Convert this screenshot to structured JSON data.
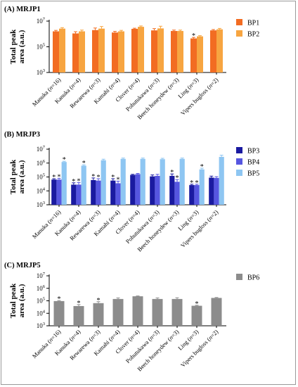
{
  "chart_data": [
    {
      "type": "bar",
      "title": "(A) MRJP1",
      "ylabel_lines": [
        "Total peak",
        "area (a.u.)"
      ],
      "yscale": "log",
      "ylim": [
        1000,
        10000000
      ],
      "yticks": [
        1000,
        100000,
        10000000
      ],
      "ytick_labels": [
        {
          "base": "10",
          "exp": "3"
        },
        {
          "base": "10",
          "exp": "5"
        },
        {
          "base": "10",
          "exp": "7"
        }
      ],
      "categories": [
        "Manuka (n=16)",
        "Kanuka (n=4)",
        "Rewarewa (n=3)",
        "Kamahi (n=4)",
        "Clover (n=4)",
        "Pohutukawa (n=3)",
        "Beech honeydew (n=3)",
        "Ling (n=3)",
        "Vipers bugloss (n=2)"
      ],
      "category_labels": [
        {
          "name": "Manuka",
          "n": "16"
        },
        {
          "name": "Kanuka",
          "n": "4"
        },
        {
          "name": "Rewarewa",
          "n": "3"
        },
        {
          "name": "Kamahi",
          "n": "4"
        },
        {
          "name": "Clover",
          "n": "4"
        },
        {
          "name": "Pohutukawa",
          "n": "3"
        },
        {
          "name": "Beech honeydew",
          "n": "3"
        },
        {
          "name": "Ling",
          "n": "3"
        },
        {
          "name": "Vipers bugloss",
          "n": "2"
        }
      ],
      "series": [
        {
          "name": "BP1",
          "color": "#f26c22",
          "values": [
            1600000,
            1100000,
            2000000,
            1300000,
            2500000,
            1900000,
            1700000,
            450000,
            1900000
          ],
          "errors": [
            300000,
            400000,
            900000,
            300000,
            300000,
            700000,
            300000,
            90000,
            300000
          ],
          "significant": [
            false,
            false,
            false,
            false,
            false,
            false,
            false,
            true,
            false
          ]
        },
        {
          "name": "BP2",
          "color": "#f7a541",
          "values": [
            2600000,
            1600000,
            2600000,
            1600000,
            3600000,
            2700000,
            1700000,
            650000,
            2300000
          ],
          "errors": [
            500000,
            400000,
            1200000,
            300000,
            600000,
            1300000,
            300000,
            90000,
            400000
          ],
          "significant": [
            false,
            false,
            false,
            false,
            false,
            false,
            false,
            false,
            false
          ]
        }
      ],
      "legend": "right",
      "grid": false
    },
    {
      "type": "bar",
      "title": "(B) MRJP3",
      "ylabel_lines": [
        "Total peak",
        "area (a.u.)"
      ],
      "yscale": "log",
      "ylim": [
        1000,
        10000000
      ],
      "yticks": [
        1000,
        10000,
        100000,
        1000000,
        10000000
      ],
      "ytick_labels": [
        {
          "base": "10",
          "exp": "3"
        },
        {
          "base": "10",
          "exp": "4"
        },
        {
          "base": "10",
          "exp": "5"
        },
        {
          "base": "10",
          "exp": "6"
        },
        {
          "base": "10",
          "exp": "7"
        }
      ],
      "categories": [
        "Manuka (n=16)",
        "Kanuka (n=4)",
        "Rewarewa (n=3)",
        "Kamahi (n=4)",
        "Clover (n=4)",
        "Pohutukawa (n=3)",
        "Beech honeydew (n=3)",
        "Ling (n=3)",
        "Vipers bugloss (n=2)"
      ],
      "category_labels": [
        {
          "name": "Manuka",
          "n": "16"
        },
        {
          "name": "Kanuka",
          "n": "4"
        },
        {
          "name": "Rewarewa",
          "n": "3"
        },
        {
          "name": "Kamahi",
          "n": "4"
        },
        {
          "name": "Clover",
          "n": "4"
        },
        {
          "name": "Pohutukawa",
          "n": "3"
        },
        {
          "name": "Beech honeydew",
          "n": "3"
        },
        {
          "name": "Ling",
          "n": "3"
        },
        {
          "name": "Vipers bugloss",
          "n": "2"
        }
      ],
      "series": [
        {
          "name": "BP3",
          "color": "#1a1aa0",
          "values": [
            65000,
            28000,
            60000,
            55000,
            140000,
            110000,
            120000,
            26000,
            90000
          ],
          "errors": [
            10000,
            10000,
            25000,
            20000,
            15000,
            30000,
            45000,
            4000,
            25000
          ],
          "significant": [
            true,
            true,
            true,
            true,
            false,
            false,
            true,
            true,
            false
          ]
        },
        {
          "name": "BP4",
          "color": "#5656e0",
          "values": [
            65000,
            28000,
            55000,
            35000,
            160000,
            120000,
            45000,
            26000,
            85000
          ],
          "errors": [
            15000,
            12000,
            20000,
            15000,
            20000,
            35000,
            20000,
            4000,
            20000
          ],
          "significant": [
            true,
            true,
            true,
            true,
            false,
            false,
            true,
            true,
            false
          ]
        },
        {
          "name": "BP5",
          "color": "#8ec6f2",
          "values": [
            1200000,
            650000,
            1600000,
            2000000,
            2000000,
            1900000,
            2000000,
            350000,
            2800000
          ],
          "errors": [
            150000,
            100000,
            300000,
            300000,
            300000,
            300000,
            300000,
            80000,
            900000
          ],
          "significant": [
            true,
            true,
            false,
            false,
            false,
            false,
            false,
            true,
            false
          ]
        }
      ],
      "legend": "right",
      "grid": false
    },
    {
      "type": "bar",
      "title": "(C) MRJP5",
      "ylabel_lines": [
        "Total peak",
        "area (a.u.)"
      ],
      "yscale": "log",
      "ylim": [
        1000,
        10000000
      ],
      "yticks": [
        1000,
        10000,
        100000,
        1000000,
        10000000
      ],
      "ytick_labels": [
        {
          "base": "10",
          "exp": "3"
        },
        {
          "base": "10",
          "exp": "4"
        },
        {
          "base": "10",
          "exp": "5"
        },
        {
          "base": "10",
          "exp": "6"
        },
        {
          "base": "10",
          "exp": "7"
        }
      ],
      "categories": [
        "Manuka (n=16)",
        "Kanuka (n=4)",
        "Rewarewa (n=3)",
        "Kamahi (n=4)",
        "Clover (n=4)",
        "Pohutukawa (n=3)",
        "Beech honeydew (n=3)",
        "Ling (n=3)",
        "Vipers bugloss (n=2)"
      ],
      "category_labels": [
        {
          "name": "Manuka",
          "n": "16"
        },
        {
          "name": "Kanuka",
          "n": "4"
        },
        {
          "name": "Rewarewa",
          "n": "3"
        },
        {
          "name": "Kamahi",
          "n": "4"
        },
        {
          "name": "Clover",
          "n": "4"
        },
        {
          "name": "Pohutukawa",
          "n": "3"
        },
        {
          "name": "Beech honeydew",
          "n": "3"
        },
        {
          "name": "Ling",
          "n": "3"
        },
        {
          "name": "Vipers bugloss",
          "n": "2"
        }
      ],
      "series": [
        {
          "name": "BP6",
          "color": "#8c8c8c",
          "values": [
            95000,
            38000,
            65000,
            140000,
            230000,
            140000,
            140000,
            40000,
            170000
          ],
          "errors": [
            10000,
            12000,
            20000,
            30000,
            15000,
            30000,
            35000,
            4000,
            15000
          ],
          "significant": [
            true,
            true,
            true,
            false,
            false,
            false,
            false,
            true,
            false
          ]
        }
      ],
      "legend": "right",
      "grid": false
    }
  ],
  "significance_marker": "*"
}
